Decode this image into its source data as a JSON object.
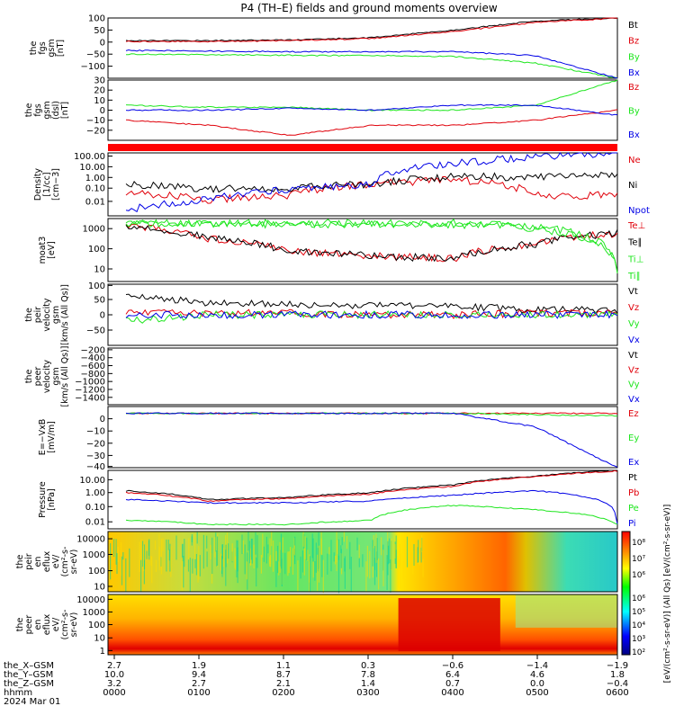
{
  "title": "P4 (TH–E) fields and ground moments overview",
  "colors": {
    "black": "#000000",
    "red": "#e0000a",
    "green": "#1ee61e",
    "blue": "#0000e6"
  },
  "panels": [
    {
      "ylabel": [
        "the",
        "fgs",
        "gsm",
        "[nT]"
      ],
      "ticks": [
        "100",
        "50",
        "0",
        "−50",
        "−100"
      ],
      "legend": [
        "Bt",
        "Bz",
        "By",
        "Bx"
      ]
    },
    {
      "ylabel": [
        "the",
        "fgs",
        "gsm",
        "(dsl)",
        "[nT]"
      ],
      "ticks": [
        "30",
        "20",
        "10",
        "0",
        "−10",
        "−20"
      ],
      "legend": [
        "Bz",
        "By",
        "Bx"
      ]
    },
    {
      "ylabel": [],
      "ticks": [],
      "legend": []
    },
    {
      "ylabel": [
        "Density",
        "[1/cc]",
        "[cm−3]"
      ],
      "ticks": [
        "100.00",
        "10.00",
        "1.00",
        "0.10",
        "0.01"
      ],
      "legend": [
        "Ne",
        "Ni",
        "Npot"
      ]
    },
    {
      "ylabel": [
        "moat3",
        "[eV]"
      ],
      "ticks": [
        "1000",
        "100",
        "10"
      ],
      "legend": [
        "Te⊥",
        "Te∥",
        "Ti⊥",
        "Ti∥"
      ]
    },
    {
      "ylabel": [
        "the",
        "peir",
        "velocity",
        "gsm",
        "[km/s (All Qs)]"
      ],
      "ticks": [
        "100",
        "50",
        "0",
        "−50"
      ],
      "legend": [
        "Vt",
        "Vz",
        "Vy",
        "Vx"
      ]
    },
    {
      "ylabel": [
        "the",
        "peer",
        "velocity",
        "gsm",
        "[km/s (All Qs)]"
      ],
      "ticks": [
        "−200",
        "−400",
        "−600",
        "−800",
        "−1000",
        "−1200",
        "−1400"
      ],
      "legend": [
        "Vt",
        "Vz",
        "Vy",
        "Vx"
      ]
    },
    {
      "ylabel": [
        "E=−VxB",
        "[mV/m]"
      ],
      "ticks": [
        "0",
        "−10",
        "−20",
        "−30",
        "−40"
      ],
      "legend": [
        "Ez",
        "Ey",
        "Ex"
      ]
    },
    {
      "ylabel": [
        "Pressure",
        "[nPa]"
      ],
      "ticks": [
        "10.00",
        "1.00",
        "0.10",
        "0.01"
      ],
      "legend": [
        "Pt",
        "Pb",
        "Pe",
        "Pi"
      ]
    },
    {
      "ylabel": [
        "the",
        "peir",
        "en",
        "eflux",
        "eV/",
        "(cm²-s-",
        "sr-eV)"
      ],
      "ticks": [
        "10000",
        "1000",
        "100",
        "10"
      ],
      "legend": []
    },
    {
      "ylabel": [
        "the",
        "peer",
        "en",
        "eflux",
        "eV/",
        "(cm²-s-",
        "sr-eV)"
      ],
      "ticks": [
        "10000",
        "1000",
        "100",
        "10",
        "1"
      ],
      "legend": []
    }
  ],
  "colorbar": {
    "ticks_top": [
      "10⁸",
      "10⁷",
      "10⁶"
    ],
    "ticks_bottom": [
      "10⁶",
      "10⁵",
      "10⁴",
      "10³",
      "10²"
    ],
    "label": "[eV/(cm²-s-sr-eV)] (All Qs) [eV/(cm²-s-sr-eV)]"
  },
  "footer": {
    "rows": [
      {
        "label": "the_X–GSM",
        "values": [
          "2.7",
          "1.9",
          "1.1",
          "0.3",
          "−0.6",
          "−1.4",
          "−1.9"
        ]
      },
      {
        "label": "the_Y–GSM",
        "values": [
          "10.0",
          "9.4",
          "8.7",
          "7.8",
          "6.4",
          "4.6",
          "1.8"
        ]
      },
      {
        "label": "the_Z–GSM",
        "values": [
          "3.2",
          "2.7",
          "2.1",
          "1.4",
          "0.7",
          "0.0",
          "−0.4"
        ]
      },
      {
        "label": "hhmm",
        "values": [
          "0000",
          "0100",
          "0200",
          "0300",
          "0400",
          "0500",
          "0600"
        ]
      }
    ],
    "date": "2024 Mar 01"
  },
  "chart_data": {
    "type": "line",
    "title": "P4 (TH–E) fields and ground moments overview",
    "x": [
      "0000",
      "0100",
      "0200",
      "0300",
      "0400",
      "0500",
      "0600"
    ],
    "xlabel": "hhmm",
    "panels": [
      {
        "name": "the fgs gsm [nT]",
        "ylim": [
          -100,
          100
        ],
        "series": [
          {
            "name": "Bt",
            "values": [
              25,
              25,
              27,
              35,
              60,
              90,
              100
            ]
          },
          {
            "name": "Bz",
            "values": [
              22,
              22,
              25,
              32,
              55,
              85,
              100
            ]
          },
          {
            "name": "By",
            "values": [
              -20,
              -22,
              -24,
              -25,
              -28,
              -50,
              -100
            ]
          },
          {
            "name": "Bx",
            "values": [
              -8,
              -10,
              -12,
              -12,
              -12,
              -25,
              -100
            ]
          }
        ]
      },
      {
        "name": "the fgs gsm (dsl) [nT]",
        "ylim": [
          -30,
          30
        ],
        "series": [
          {
            "name": "Bz",
            "values": [
              -10,
              -15,
              -25,
              -15,
              -15,
              -10,
              0
            ]
          },
          {
            "name": "By",
            "values": [
              5,
              3,
              3,
              0,
              0,
              5,
              30
            ]
          },
          {
            "name": "Bx",
            "values": [
              0,
              0,
              2,
              0,
              5,
              5,
              -5
            ]
          }
        ]
      },
      {
        "name": "Density [1/cc]",
        "ylim": [
          0.01,
          100
        ],
        "yscale": "log",
        "series": [
          {
            "name": "Ne",
            "values": [
              0.3,
              0.1,
              0.2,
              1,
              2,
              0.2,
              0.2
            ]
          },
          {
            "name": "Ni",
            "values": [
              1,
              0.5,
              0.6,
              1,
              3,
              3,
              5
            ]
          },
          {
            "name": "Npot",
            "values": [
              0.02,
              0.1,
              0.5,
              1,
              20,
              50,
              100
            ]
          }
        ]
      },
      {
        "name": "moat3 [eV]",
        "ylim": [
          10,
          3000
        ],
        "yscale": "log",
        "series": [
          {
            "name": "Te⊥",
            "values": [
              1500,
              500,
              150,
              100,
              80,
              300,
              800
            ]
          },
          {
            "name": "Te∥",
            "values": [
              1500,
              500,
              150,
              100,
              80,
              300,
              800
            ]
          },
          {
            "name": "Ti⊥",
            "values": [
              2000,
              2000,
              2000,
              2000,
              2000,
              1500,
              30
            ]
          },
          {
            "name": "Ti∥",
            "values": [
              2000,
              1800,
              1800,
              1800,
              1800,
              1200,
              20
            ]
          }
        ]
      },
      {
        "name": "the peir velocity gsm [km/s (All Qs)]",
        "ylim": [
          -100,
          100
        ],
        "series": [
          {
            "name": "Vt",
            "values": [
              60,
              40,
              35,
              30,
              30,
              15,
              15
            ]
          },
          {
            "name": "Vz",
            "values": [
              10,
              5,
              5,
              0,
              0,
              5,
              5
            ]
          },
          {
            "name": "Vy",
            "values": [
              -20,
              0,
              0,
              0,
              0,
              0,
              0
            ]
          },
          {
            "name": "Vx",
            "values": [
              0,
              0,
              0,
              0,
              0,
              0,
              0
            ]
          }
        ]
      },
      {
        "name": "the peer velocity gsm [km/s (All Qs)]",
        "ylim": [
          -1400,
          0
        ],
        "series": [
          {
            "name": "Vt",
            "values": []
          },
          {
            "name": "Vz",
            "values": []
          },
          {
            "name": "Vy",
            "values": []
          },
          {
            "name": "Vx",
            "values": []
          }
        ]
      },
      {
        "name": "E=−VxB [mV/m]",
        "ylim": [
          -40,
          5
        ],
        "series": [
          {
            "name": "Ez",
            "values": [
              0,
              0,
              0,
              0,
              0,
              0,
              0
            ]
          },
          {
            "name": "Ey",
            "values": [
              0,
              0,
              0,
              0,
              0,
              -1,
              -2
            ]
          },
          {
            "name": "Ex",
            "values": [
              0,
              0,
              0,
              0,
              0,
              -10,
              -40
            ]
          }
        ]
      },
      {
        "name": "Pressure [nPa]",
        "ylim": [
          0.005,
          50
        ],
        "yscale": "log",
        "series": [
          {
            "name": "Pt",
            "values": [
              2,
              0.5,
              0.7,
              1.5,
              5,
              20,
              50
            ]
          },
          {
            "name": "Pb",
            "values": [
              1.5,
              0.4,
              0.6,
              1.2,
              4,
              18,
              45
            ]
          },
          {
            "name": "Pe",
            "values": [
              0.02,
              0.01,
              0.01,
              0.02,
              0.2,
              0.1,
              0.01
            ]
          },
          {
            "name": "Pi",
            "values": [
              0.5,
              0.3,
              0.3,
              0.4,
              1,
              2,
              0.01
            ]
          }
        ]
      }
    ]
  }
}
